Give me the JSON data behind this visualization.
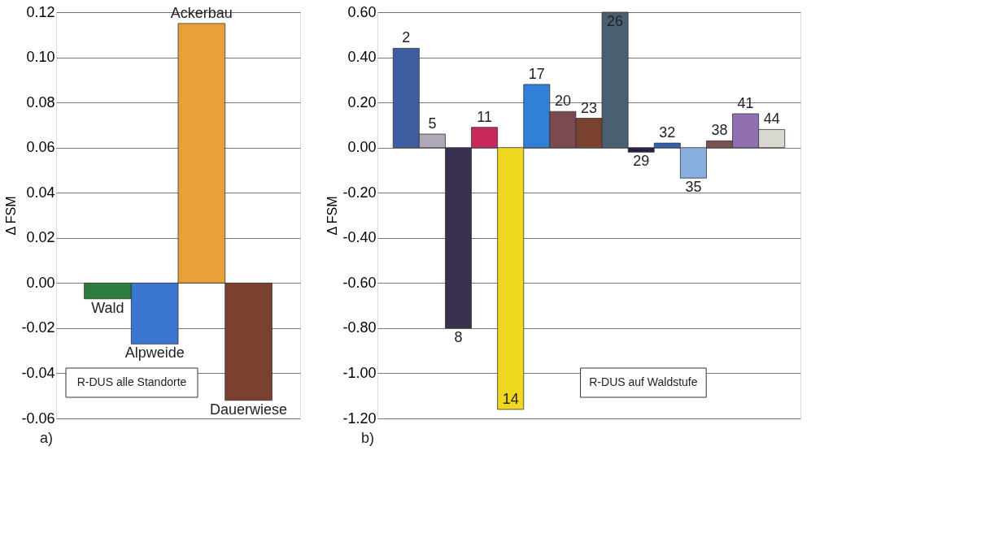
{
  "chart_data": [
    {
      "type": "bar",
      "ylabel": "Δ FSM",
      "categories": [
        "Wald",
        "Alpweide",
        "Ackerbau",
        "Dauerwiese"
      ],
      "values": [
        -0.007,
        -0.027,
        0.115,
        -0.052
      ],
      "colors": [
        "#2e7d3e",
        "#3a75d0",
        "#e8a038",
        "#7a4030"
      ],
      "ylim": [
        -0.06,
        0.12
      ],
      "yticks": [
        {
          "value": -0.06,
          "label": "-0.06"
        },
        {
          "value": -0.04,
          "label": "-0.04"
        },
        {
          "value": -0.02,
          "label": "-0.02"
        },
        {
          "value": 0,
          "label": "0.00"
        },
        {
          "value": 0.02,
          "label": "0.02"
        },
        {
          "value": 0.04,
          "label": "0.04"
        },
        {
          "value": 0.06,
          "label": "0.06"
        },
        {
          "value": 0.08,
          "label": "0.08"
        },
        {
          "value": 0.1,
          "label": "0.10"
        },
        {
          "value": 0.12,
          "label": "0.12"
        }
      ],
      "grid": "y",
      "tick_labels": "y",
      "annotations": [
        "R-DUS alle Standorte",
        "a)"
      ]
    },
    {
      "type": "bar",
      "ylabel": "Δ FSM",
      "categories": [
        "2",
        "5",
        "8",
        "11",
        "14",
        "17",
        "20",
        "23",
        "26",
        "29",
        "32",
        "35",
        "38",
        "41",
        "44"
      ],
      "values": [
        0.44,
        0.06,
        -0.8,
        0.09,
        -1.16,
        0.28,
        0.16,
        0.13,
        0.6,
        -0.02,
        0.02,
        -0.135,
        0.03,
        0.15,
        0.08
      ],
      "colors": [
        "#3d5ea0",
        "#b0a8b8",
        "#3a3050",
        "#c8285a",
        "#f0d820",
        "#3080d8",
        "#7a4a50",
        "#7a4030",
        "#4a6070",
        "#28204a",
        "#3060b0",
        "#88aee0",
        "#7a5050",
        "#9070b0",
        "#d8d8d0"
      ],
      "ylim": [
        -1.2,
        0.6
      ],
      "yticks": [
        {
          "value": -1.2,
          "label": "-1.20"
        },
        {
          "value": -1.0,
          "label": "-1.00"
        },
        {
          "value": -0.8,
          "label": "-0.80"
        },
        {
          "value": -0.6,
          "label": "-0.60"
        },
        {
          "value": -0.4,
          "label": "-0.40"
        },
        {
          "value": -0.2,
          "label": "-0.20"
        },
        {
          "value": 0,
          "label": "0.00"
        },
        {
          "value": 0.2,
          "label": "0.20"
        },
        {
          "value": 0.4,
          "label": "0.40"
        },
        {
          "value": 0.6,
          "label": "0.60"
        }
      ],
      "grid": "y",
      "tick_labels": "y",
      "annotations": [
        "R-DUS auf Waldstufe",
        "b)"
      ]
    }
  ]
}
